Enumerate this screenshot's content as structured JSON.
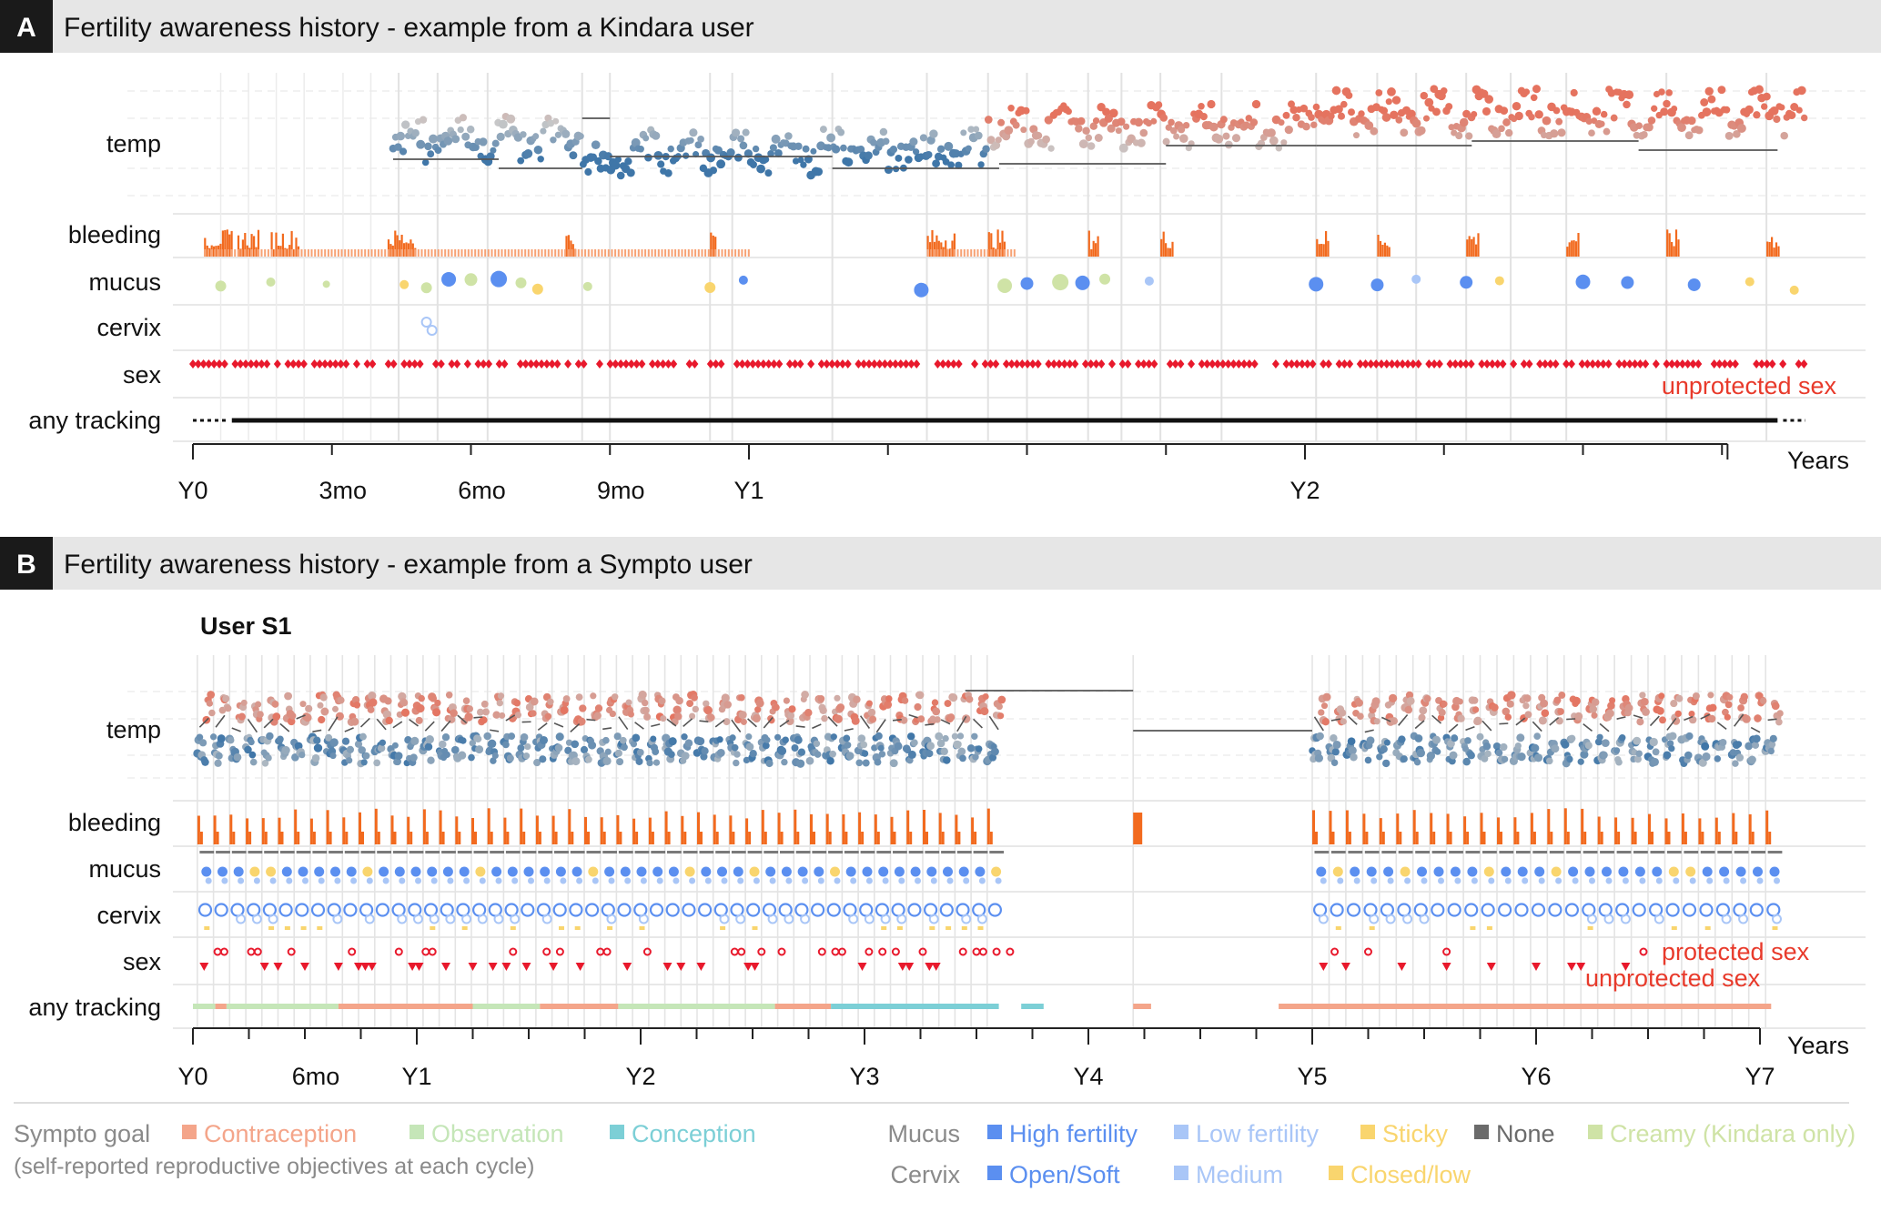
{
  "panel_a": {
    "letter": "A",
    "title": "Fertility awareness history - example from a Kindara user",
    "row_labels": [
      "temp",
      "bleeding",
      "mucus",
      "cervix",
      "sex",
      "any tracking"
    ],
    "annotation": "unprotected sex",
    "x_axis": {
      "title": "Years",
      "tick_labels": [
        "Y0",
        "3mo",
        "6mo",
        "9mo",
        "Y1",
        "Y2"
      ]
    }
  },
  "panel_b": {
    "letter": "B",
    "title": "Fertility awareness history - example from a Sympto user",
    "user": "User S1",
    "row_labels": [
      "temp",
      "bleeding",
      "mucus",
      "cervix",
      "sex",
      "any tracking"
    ],
    "annotations": {
      "protected": "protected sex",
      "unprotected": "unprotected sex"
    },
    "x_axis": {
      "title": "Years",
      "tick_labels": [
        "Y0",
        "6mo",
        "Y1",
        "Y2",
        "Y3",
        "Y4",
        "Y5",
        "Y6",
        "Y7"
      ]
    }
  },
  "legend": {
    "goal": {
      "title": "Sympto goal",
      "subtitle": "(self-reported reproductive objectives at each cycle)",
      "items": [
        {
          "label": "Contraception",
          "color": "#f4a58a"
        },
        {
          "label": "Observation",
          "color": "#c5e6b8"
        },
        {
          "label": "Conception",
          "color": "#7ccfd6"
        }
      ]
    },
    "mucus": {
      "title": "Mucus",
      "items": [
        {
          "label": "High fertility",
          "color": "#5b8ff0"
        },
        {
          "label": "Low fertility",
          "color": "#a9c6f7"
        },
        {
          "label": "Sticky",
          "color": "#f9d56e"
        },
        {
          "label": "None",
          "color": "#6b6b6b"
        },
        {
          "label": "Creamy (Kindara only)",
          "color": "#cfe3a6"
        }
      ]
    },
    "cervix": {
      "title": "Cervix",
      "items": [
        {
          "label": "Open/Soft",
          "color": "#5b8ff0"
        },
        {
          "label": "Medium",
          "color": "#a9c6f7"
        },
        {
          "label": "Closed/low",
          "color": "#f9d56e"
        }
      ]
    }
  },
  "chart_data": [
    {
      "type": "scatter",
      "title": "Fertility awareness history - example from a Kindara user",
      "x_units": "years since first tracking",
      "xlim": [
        0,
        2.95
      ],
      "x_ticks": [
        [
          0,
          "Y0"
        ],
        [
          0.25,
          "3mo"
        ],
        [
          0.5,
          "6mo"
        ],
        [
          0.75,
          "9mo"
        ],
        [
          1,
          "Y1"
        ],
        [
          2,
          "Y2"
        ]
      ],
      "rows": [
        "temp",
        "bleeding",
        "mucus",
        "cervix",
        "sex",
        "any tracking"
      ],
      "cycle_boundaries": [
        0.37,
        0.44,
        0.53,
        0.7,
        0.75,
        0.93,
        0.97,
        1.15,
        1.32,
        1.43,
        1.5,
        1.61,
        1.67,
        1.74,
        1.85,
        2.02,
        2.13,
        2.2,
        2.29,
        2.37,
        2.47,
        2.65,
        2.83
      ],
      "bleeding_periods": [
        [
          0.02,
          0.07
        ],
        [
          0.08,
          0.12
        ],
        [
          0.14,
          0.19
        ],
        [
          0.35,
          0.4
        ],
        [
          0.67,
          0.69
        ],
        [
          0.93,
          0.94
        ],
        [
          1.32,
          1.37
        ],
        [
          1.43,
          1.46
        ],
        [
          1.61,
          1.63
        ],
        [
          1.74,
          1.76
        ],
        [
          2.02,
          2.04
        ],
        [
          2.13,
          2.15
        ],
        [
          2.29,
          2.31
        ],
        [
          2.47,
          2.49
        ],
        [
          2.65,
          2.67
        ],
        [
          2.83,
          2.85
        ]
      ],
      "sex_dates": "frequent unprotected sex events across Y0 to ~Y2.9",
      "tracking": [
        0.0,
        2.9
      ]
    },
    {
      "type": "scatter",
      "title": "Fertility awareness history - example from a Sympto user",
      "subtitle": "User S1",
      "x_units": "years since first tracking",
      "xlim": [
        0,
        7.1
      ],
      "x_ticks": [
        [
          0,
          "Y0"
        ],
        [
          0.5,
          "6mo"
        ],
        [
          1,
          "Y1"
        ],
        [
          2,
          "Y2"
        ],
        [
          3,
          "Y3"
        ],
        [
          4,
          "Y4"
        ],
        [
          5,
          "Y5"
        ],
        [
          6,
          "Y6"
        ],
        [
          7,
          "Y7"
        ]
      ],
      "rows": [
        "temp",
        "bleeding",
        "mucus",
        "cervix",
        "sex",
        "any tracking"
      ],
      "tracking_segments": [
        {
          "start": 0.0,
          "end": 0.1,
          "goal": "Observation"
        },
        {
          "start": 0.1,
          "end": 0.15,
          "goal": "Contraception"
        },
        {
          "start": 0.15,
          "end": 0.65,
          "goal": "Observation"
        },
        {
          "start": 0.65,
          "end": 1.25,
          "goal": "Contraception"
        },
        {
          "start": 1.25,
          "end": 1.55,
          "goal": "Observation"
        },
        {
          "start": 1.55,
          "end": 1.9,
          "goal": "Contraception"
        },
        {
          "start": 1.9,
          "end": 2.6,
          "goal": "Observation"
        },
        {
          "start": 2.6,
          "end": 2.85,
          "goal": "Contraception"
        },
        {
          "start": 2.85,
          "end": 3.6,
          "goal": "Conception"
        },
        {
          "start": 3.7,
          "end": 3.8,
          "goal": "Conception"
        },
        {
          "start": 4.2,
          "end": 4.28,
          "goal": "Contraception"
        },
        {
          "start": 4.85,
          "end": 7.05,
          "goal": "Contraception"
        }
      ],
      "gap": [
        3.8,
        4.85
      ]
    }
  ]
}
